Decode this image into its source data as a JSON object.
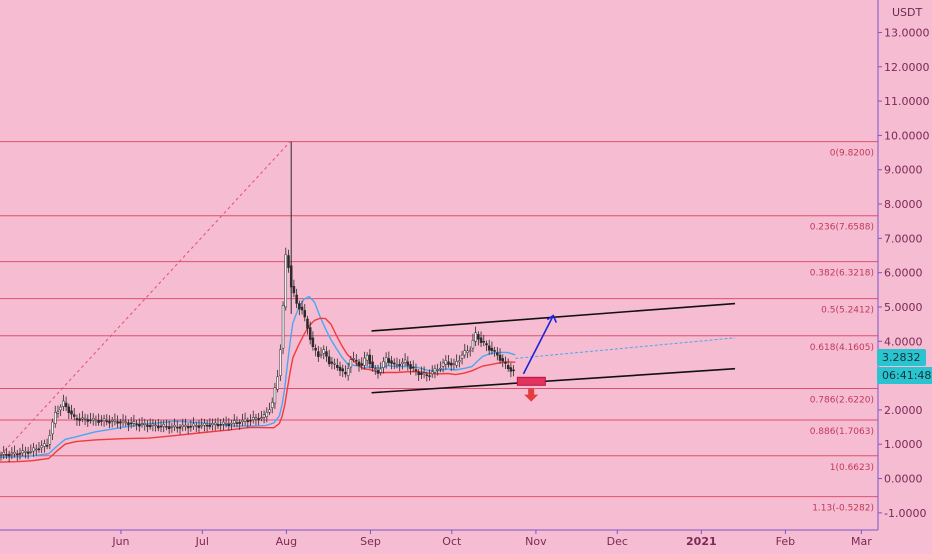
{
  "currency": "USDT",
  "last_price": "3.2832",
  "countdown": "06:41:48",
  "colors": {
    "background": "#f6bcd2",
    "fib_line": "#e0506e",
    "fib_label": "#c03a5a",
    "axis_text": "#7a2a55",
    "axis_line": "#7c54c9",
    "ema_fast": "#4aa8f0",
    "ema_slow": "#ef3b3b",
    "channel": "#111111",
    "up_arrow": "#1c24d8",
    "down_arrow": "#e23c3c",
    "candle": "#2a2a2a",
    "price_tag": "#29c4cf"
  },
  "chart_data": {
    "type": "candlestick",
    "x_ticks": [
      "Jun",
      "Jul",
      "Aug",
      "Sep",
      "Oct",
      "Nov",
      "Dec",
      "2021",
      "Feb",
      "Mar"
    ],
    "y_ticks": [
      "-1.0000",
      "0.0000",
      "1.0000",
      "2.0000",
      "3.0000",
      "4.0000",
      "5.0000",
      "6.0000",
      "7.0000",
      "8.0000",
      "9.0000",
      "10.0000",
      "11.0000",
      "12.0000",
      "13.0000"
    ],
    "ylim": [
      -1.5,
      13.8
    ],
    "fib_levels": [
      {
        "label": "0(9.8200)",
        "value": 9.82
      },
      {
        "label": "0.236(7.6588)",
        "value": 7.6588
      },
      {
        "label": "0.382(6.3218)",
        "value": 6.3218
      },
      {
        "label": "0.5(5.2412)",
        "value": 5.2412
      },
      {
        "label": "0.618(4.1605)",
        "value": 4.1605
      },
      {
        "label": "0.786(2.6220)",
        "value": 2.622
      },
      {
        "label": "0.886(1.7063)",
        "value": 1.7063
      },
      {
        "label": "1(0.6623)",
        "value": 0.6623
      },
      {
        "label": "1.13(-0.5282)",
        "value": -0.5282
      }
    ],
    "price_path": [
      [
        0,
        0.7
      ],
      [
        6,
        0.72
      ],
      [
        12,
        0.8
      ],
      [
        18,
        1.0
      ],
      [
        21,
        1.9
      ],
      [
        24,
        2.2
      ],
      [
        28,
        1.75
      ],
      [
        35,
        1.7
      ],
      [
        45,
        1.65
      ],
      [
        55,
        1.55
      ],
      [
        65,
        1.5
      ],
      [
        75,
        1.55
      ],
      [
        85,
        1.6
      ],
      [
        92,
        1.7
      ],
      [
        98,
        1.8
      ],
      [
        101,
        2.2
      ],
      [
        103,
        3.0
      ],
      [
        104,
        3.8
      ],
      [
        105,
        5.0
      ],
      [
        106,
        6.5
      ],
      [
        107,
        6.2
      ],
      [
        108,
        5.6
      ],
      [
        110,
        5.1
      ],
      [
        112,
        4.9
      ],
      [
        114,
        4.4
      ],
      [
        116,
        3.8
      ],
      [
        118,
        3.6
      ],
      [
        120,
        3.7
      ],
      [
        122,
        3.4
      ],
      [
        124,
        3.3
      ],
      [
        126,
        3.2
      ],
      [
        128,
        3.0
      ],
      [
        130,
        3.5
      ],
      [
        132,
        3.4
      ],
      [
        134,
        3.3
      ],
      [
        136,
        3.6
      ],
      [
        138,
        3.2
      ],
      [
        140,
        3.1
      ],
      [
        143,
        3.5
      ],
      [
        146,
        3.3
      ],
      [
        150,
        3.4
      ],
      [
        154,
        3.1
      ],
      [
        158,
        3.0
      ],
      [
        162,
        3.2
      ],
      [
        165,
        3.4
      ],
      [
        168,
        3.3
      ],
      [
        171,
        3.6
      ],
      [
        174,
        3.8
      ],
      [
        176,
        4.2
      ],
      [
        178,
        4.0
      ],
      [
        181,
        3.8
      ],
      [
        184,
        3.6
      ],
      [
        187,
        3.3
      ],
      [
        190,
        3.1
      ]
    ],
    "spike_high": 9.82,
    "channel_upper": [
      [
        137,
        4.3
      ],
      [
        271,
        5.1
      ]
    ],
    "channel_lower": [
      [
        137,
        2.5
      ],
      [
        271,
        3.2
      ]
    ],
    "projection_line": [
      [
        190,
        3.5
      ],
      [
        271,
        4.1
      ]
    ],
    "fib_trend_line": [
      [
        0,
        0.66
      ],
      [
        107,
        9.82
      ]
    ]
  }
}
